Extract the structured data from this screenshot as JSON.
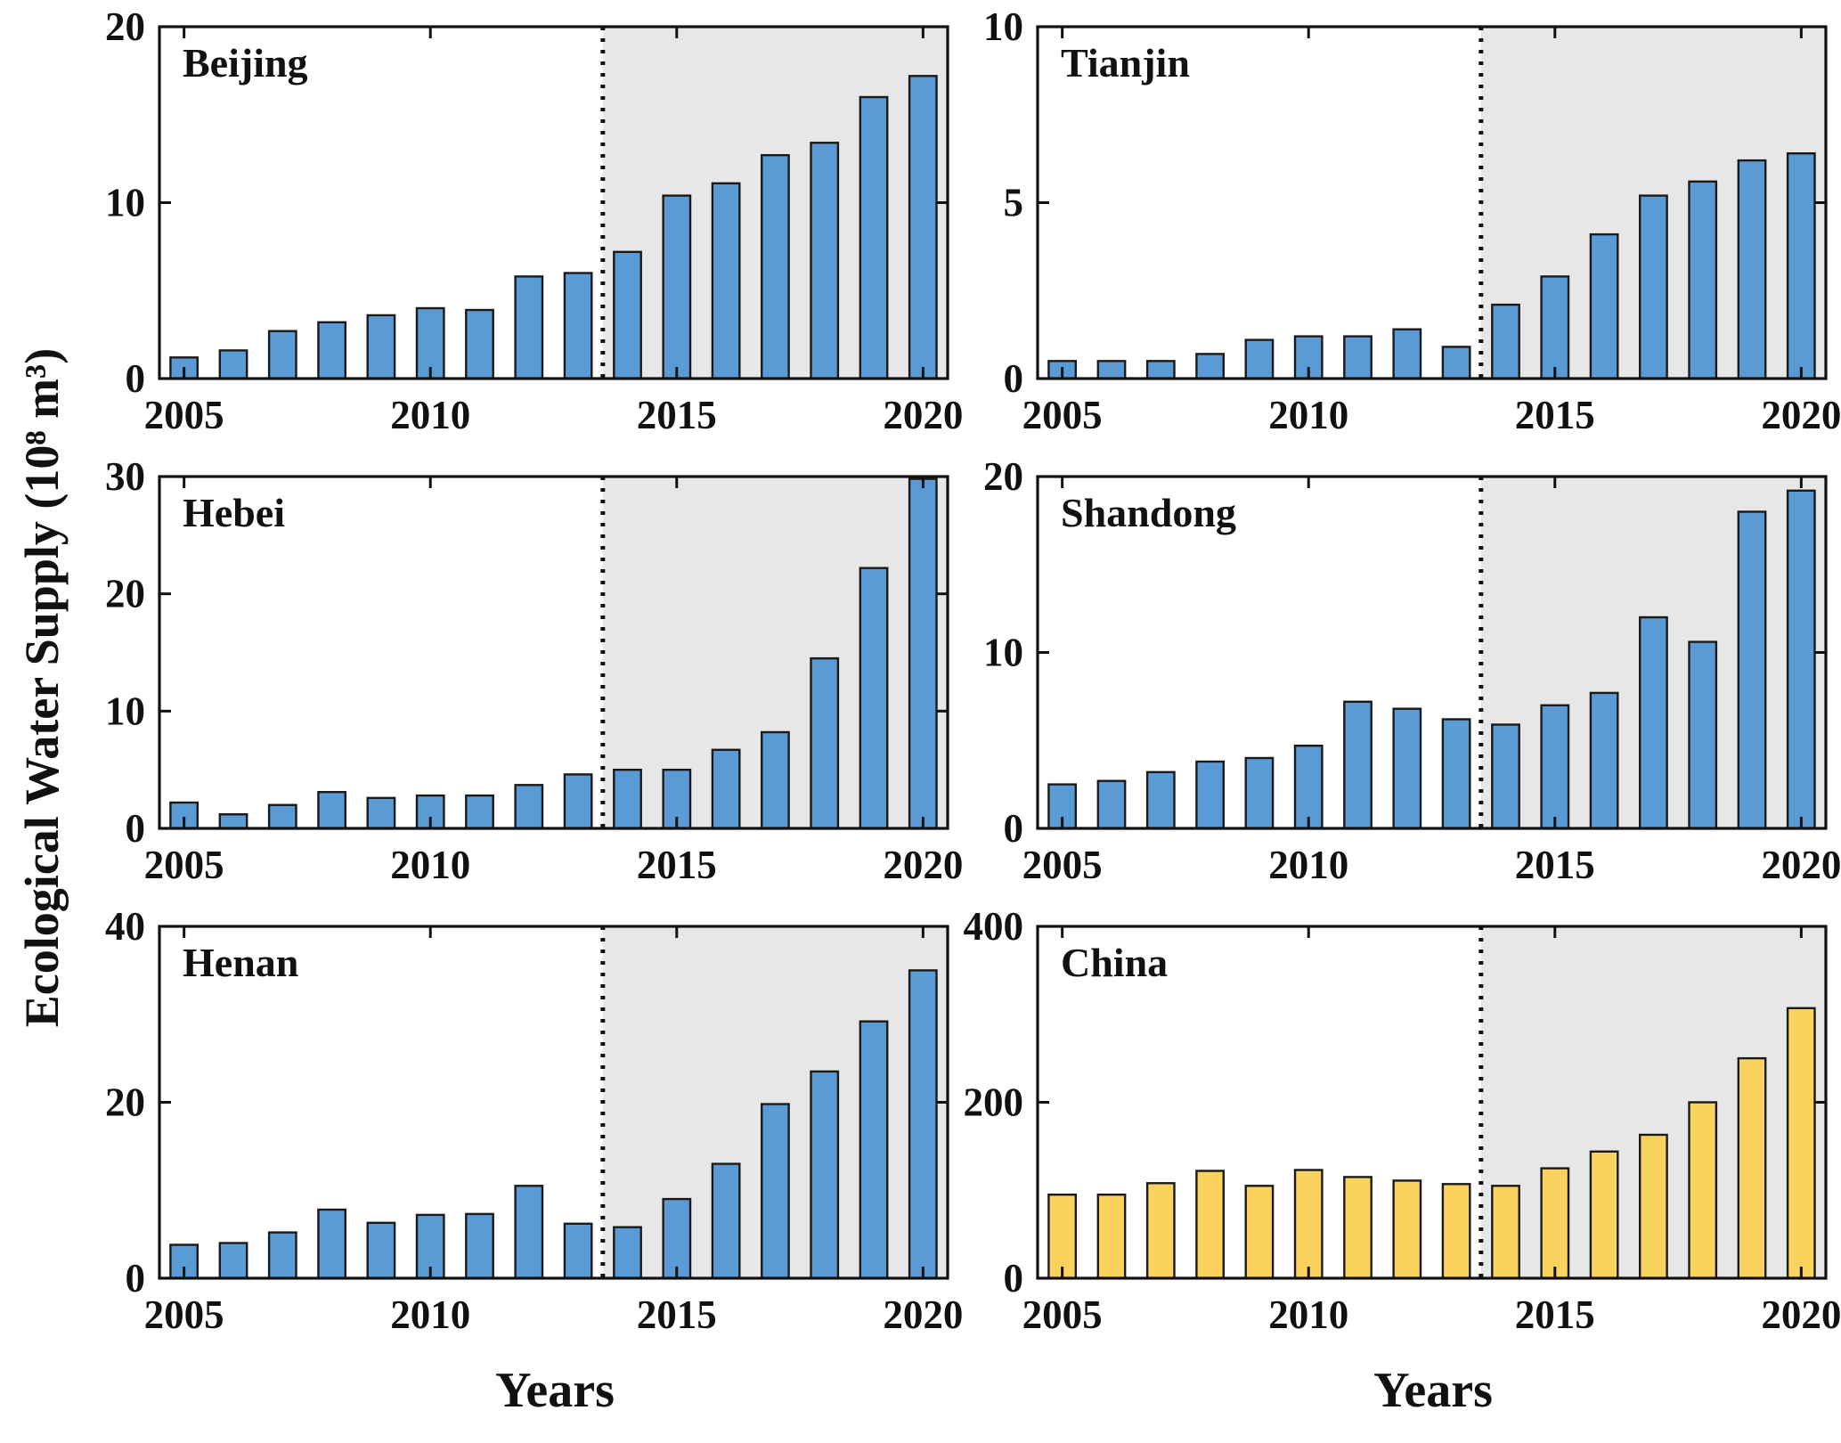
{
  "figure": {
    "ylabel": "Ecological Water Supply (10⁸ m³)",
    "xlabel": "Years",
    "forecast_start_year": 2014,
    "colors": {
      "province_bar": "#5B9BD5",
      "china_bar": "#FAD35E",
      "bar_edge": "#1a1a1a",
      "shade": "#E7E7E7",
      "axis": "#111111"
    }
  },
  "chart_data": [
    {
      "type": "bar",
      "title": "Beijing",
      "categories": [
        2005,
        2006,
        2007,
        2008,
        2009,
        2010,
        2011,
        2012,
        2013,
        2014,
        2015,
        2016,
        2017,
        2018,
        2019,
        2020
      ],
      "values": [
        1.2,
        1.6,
        2.7,
        3.2,
        3.6,
        4.0,
        3.9,
        5.8,
        6.0,
        7.2,
        10.4,
        11.1,
        12.7,
        13.4,
        16.0,
        17.2
      ],
      "ylim": [
        0,
        20
      ],
      "yticks": [
        0,
        10,
        20
      ],
      "xticks": [
        2005,
        2010,
        2015,
        2020
      ],
      "bar_color": "#5B9BD5"
    },
    {
      "type": "bar",
      "title": "Tianjin",
      "categories": [
        2005,
        2006,
        2007,
        2008,
        2009,
        2010,
        2011,
        2012,
        2013,
        2014,
        2015,
        2016,
        2017,
        2018,
        2019,
        2020
      ],
      "values": [
        0.5,
        0.5,
        0.5,
        0.7,
        1.1,
        1.2,
        1.2,
        1.4,
        0.9,
        2.1,
        2.9,
        4.1,
        5.2,
        5.6,
        6.2,
        6.4
      ],
      "ylim": [
        0,
        10
      ],
      "yticks": [
        0,
        5,
        10
      ],
      "xticks": [
        2005,
        2010,
        2015,
        2020
      ],
      "bar_color": "#5B9BD5"
    },
    {
      "type": "bar",
      "title": "Hebei",
      "categories": [
        2005,
        2006,
        2007,
        2008,
        2009,
        2010,
        2011,
        2012,
        2013,
        2014,
        2015,
        2016,
        2017,
        2018,
        2019,
        2020
      ],
      "values": [
        2.2,
        1.2,
        2.0,
        3.1,
        2.6,
        2.8,
        2.8,
        3.7,
        4.6,
        5.0,
        5.0,
        6.7,
        8.2,
        14.5,
        22.2,
        29.8
      ],
      "ylim": [
        0,
        30
      ],
      "yticks": [
        0,
        10,
        20,
        30
      ],
      "xticks": [
        2005,
        2010,
        2015,
        2020
      ],
      "bar_color": "#5B9BD5"
    },
    {
      "type": "bar",
      "title": "Shandong",
      "categories": [
        2005,
        2006,
        2007,
        2008,
        2009,
        2010,
        2011,
        2012,
        2013,
        2014,
        2015,
        2016,
        2017,
        2018,
        2019,
        2020
      ],
      "values": [
        2.5,
        2.7,
        3.2,
        3.8,
        4.0,
        4.7,
        7.2,
        6.8,
        6.2,
        5.9,
        7.0,
        7.7,
        12.0,
        10.6,
        18.0,
        19.2
      ],
      "ylim": [
        0,
        20
      ],
      "yticks": [
        0,
        10,
        20
      ],
      "xticks": [
        2005,
        2010,
        2015,
        2020
      ],
      "bar_color": "#5B9BD5"
    },
    {
      "type": "bar",
      "title": "Henan",
      "categories": [
        2005,
        2006,
        2007,
        2008,
        2009,
        2010,
        2011,
        2012,
        2013,
        2014,
        2015,
        2016,
        2017,
        2018,
        2019,
        2020
      ],
      "values": [
        3.8,
        4.0,
        5.2,
        7.8,
        6.3,
        7.2,
        7.3,
        10.5,
        6.2,
        5.8,
        9.0,
        13.0,
        19.8,
        23.5,
        29.2,
        35.0
      ],
      "ylim": [
        0,
        40
      ],
      "yticks": [
        0,
        20,
        40
      ],
      "xticks": [
        2005,
        2010,
        2015,
        2020
      ],
      "bar_color": "#5B9BD5"
    },
    {
      "type": "bar",
      "title": "China",
      "categories": [
        2005,
        2006,
        2007,
        2008,
        2009,
        2010,
        2011,
        2012,
        2013,
        2014,
        2015,
        2016,
        2017,
        2018,
        2019,
        2020
      ],
      "values": [
        95,
        95,
        108,
        122,
        105,
        123,
        115,
        111,
        107,
        105,
        125,
        144,
        163,
        200,
        250,
        307
      ],
      "ylim": [
        0,
        400
      ],
      "yticks": [
        0,
        200,
        400
      ],
      "xticks": [
        2005,
        2010,
        2015,
        2020
      ],
      "bar_color": "#FAD35E"
    }
  ]
}
